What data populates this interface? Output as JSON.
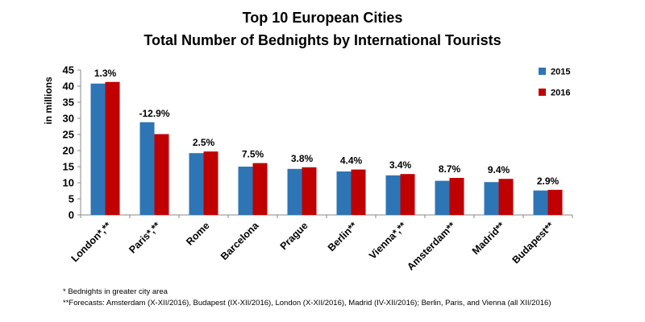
{
  "chart_data": {
    "type": "bar",
    "title": [
      "Top 10 European Cities",
      "Total Number of Bednights by International Tourists"
    ],
    "ylabel": "in millions",
    "ylim": [
      0,
      45
    ],
    "yticks": [
      0,
      5,
      10,
      15,
      20,
      25,
      30,
      35,
      40,
      45
    ],
    "categories": [
      "London*,**",
      "Paris*,**",
      "Rome",
      "Barcelona",
      "Prague",
      "Berlin**",
      "Vienna*,**",
      "Amsterdam**",
      "Madrid**",
      "Budapest**"
    ],
    "series": [
      {
        "name": "2015",
        "color": "#2e75b6",
        "values": [
          40.8,
          28.8,
          19.2,
          15.0,
          14.3,
          13.5,
          12.3,
          10.6,
          10.2,
          7.6
        ]
      },
      {
        "name": "2016",
        "color": "#c00000",
        "values": [
          41.3,
          25.1,
          19.7,
          16.1,
          14.8,
          14.1,
          12.7,
          11.5,
          11.2,
          7.8
        ]
      }
    ],
    "annotations": [
      "1.3%",
      "-12.9%",
      "2.5%",
      "7.5%",
      "3.8%",
      "4.4%",
      "3.4%",
      "8.7%",
      "9.4%",
      "2.9%"
    ],
    "legend_position": "top-right",
    "grid": false
  },
  "footnotes": {
    "note1": "* Bednights in greater city area",
    "note2": "**Forecasts: Amsterdam (X-XII/2016), Budapest (IX-XII/2016), London (X-XII/2016), Madrid (IV-XII/2016); Berlin, Paris, and Vienna (all XII/2016)"
  }
}
